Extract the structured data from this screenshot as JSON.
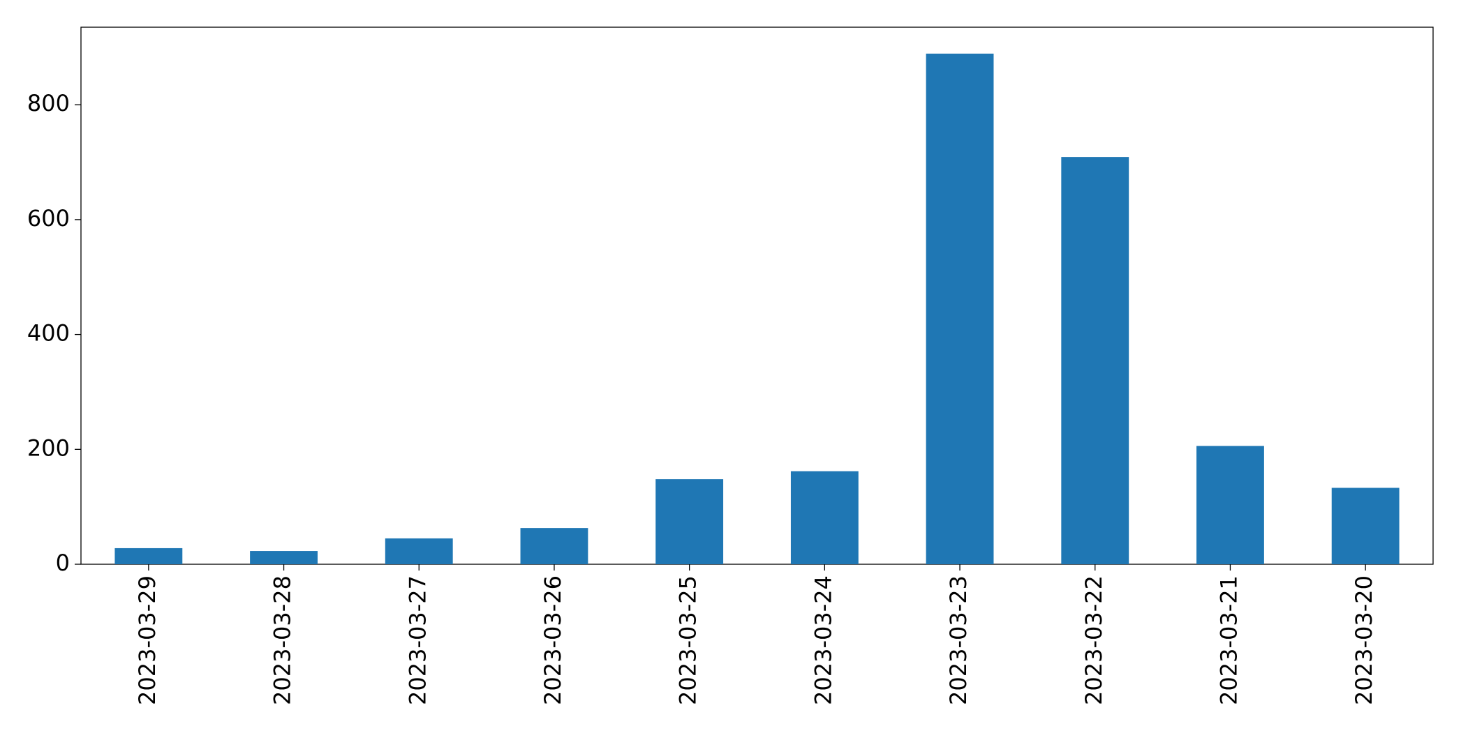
{
  "chart_data": {
    "type": "bar",
    "categories": [
      "2023-03-29",
      "2023-03-28",
      "2023-03-27",
      "2023-03-26",
      "2023-03-25",
      "2023-03-24",
      "2023-03-23",
      "2023-03-22",
      "2023-03-21",
      "2023-03-20"
    ],
    "values": [
      28,
      23,
      45,
      63,
      148,
      162,
      889,
      709,
      206,
      133
    ],
    "color": "#1f77b4",
    "ylim": [
      0,
      935
    ],
    "yticks": [
      0,
      200,
      400,
      600,
      800
    ],
    "grid": false
  }
}
